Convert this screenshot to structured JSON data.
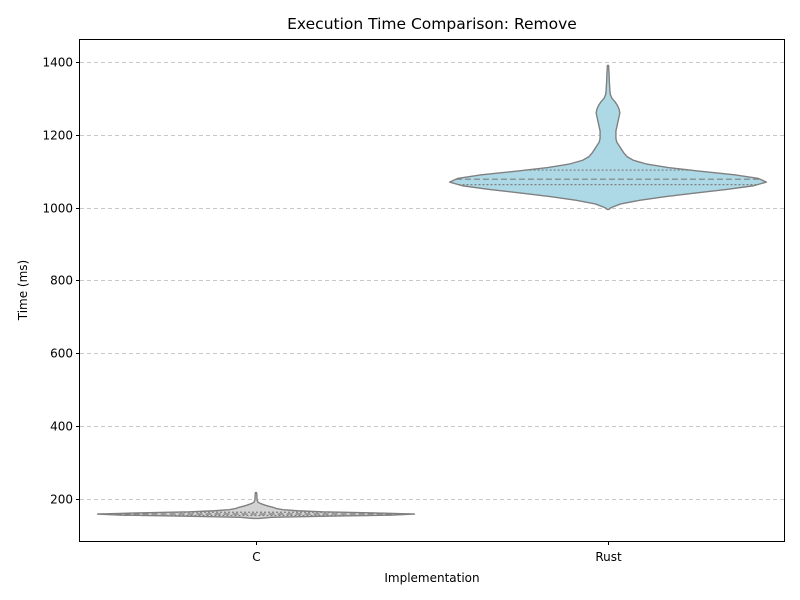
{
  "chart_data": {
    "type": "violin",
    "title": "Execution Time Comparison: Remove",
    "xlabel": "Implementation",
    "ylabel": "Time (ms)",
    "categories": [
      "C",
      "Rust"
    ],
    "ylim": [
      85,
      1460
    ],
    "yticks": [
      200,
      400,
      600,
      800,
      1000,
      1200,
      1400
    ],
    "grid": "y-dashed",
    "inner": "quartile",
    "series": [
      {
        "category": "C",
        "color": "#d3d3d3",
        "min": 147,
        "max": 218,
        "q1": 155,
        "median": 159,
        "q3": 164,
        "density": [
          [
            147,
            0.02
          ],
          [
            150,
            0.1
          ],
          [
            153,
            0.45
          ],
          [
            156,
            0.85
          ],
          [
            159,
            1.0
          ],
          [
            162,
            0.75
          ],
          [
            165,
            0.42
          ],
          [
            168,
            0.26
          ],
          [
            171,
            0.17
          ],
          [
            174,
            0.13
          ],
          [
            177,
            0.11
          ],
          [
            180,
            0.085
          ],
          [
            183,
            0.06
          ],
          [
            186,
            0.04
          ],
          [
            189,
            0.022
          ],
          [
            192,
            0.012
          ],
          [
            196,
            0.008
          ],
          [
            202,
            0.006
          ],
          [
            208,
            0.006
          ],
          [
            214,
            0.005
          ],
          [
            218,
            0.003
          ]
        ]
      },
      {
        "category": "Rust",
        "color": "#add8e6",
        "min": 995,
        "max": 1390,
        "q1": 1063,
        "median": 1078,
        "q3": 1103,
        "density": [
          [
            995,
            0.005
          ],
          [
            1000,
            0.02
          ],
          [
            1010,
            0.08
          ],
          [
            1020,
            0.2
          ],
          [
            1030,
            0.36
          ],
          [
            1040,
            0.55
          ],
          [
            1050,
            0.75
          ],
          [
            1060,
            0.92
          ],
          [
            1070,
            1.0
          ],
          [
            1080,
            0.95
          ],
          [
            1090,
            0.8
          ],
          [
            1100,
            0.58
          ],
          [
            1110,
            0.38
          ],
          [
            1120,
            0.24
          ],
          [
            1130,
            0.16
          ],
          [
            1140,
            0.12
          ],
          [
            1150,
            0.1
          ],
          [
            1160,
            0.085
          ],
          [
            1170,
            0.07
          ],
          [
            1180,
            0.055
          ],
          [
            1190,
            0.05
          ],
          [
            1200,
            0.05
          ],
          [
            1210,
            0.05
          ],
          [
            1220,
            0.055
          ],
          [
            1230,
            0.06
          ],
          [
            1240,
            0.065
          ],
          [
            1250,
            0.07
          ],
          [
            1260,
            0.075
          ],
          [
            1270,
            0.07
          ],
          [
            1280,
            0.06
          ],
          [
            1290,
            0.045
          ],
          [
            1300,
            0.025
          ],
          [
            1310,
            0.015
          ],
          [
            1320,
            0.012
          ],
          [
            1335,
            0.01
          ],
          [
            1350,
            0.008
          ],
          [
            1365,
            0.007
          ],
          [
            1380,
            0.005
          ],
          [
            1390,
            0.003
          ]
        ]
      }
    ]
  }
}
